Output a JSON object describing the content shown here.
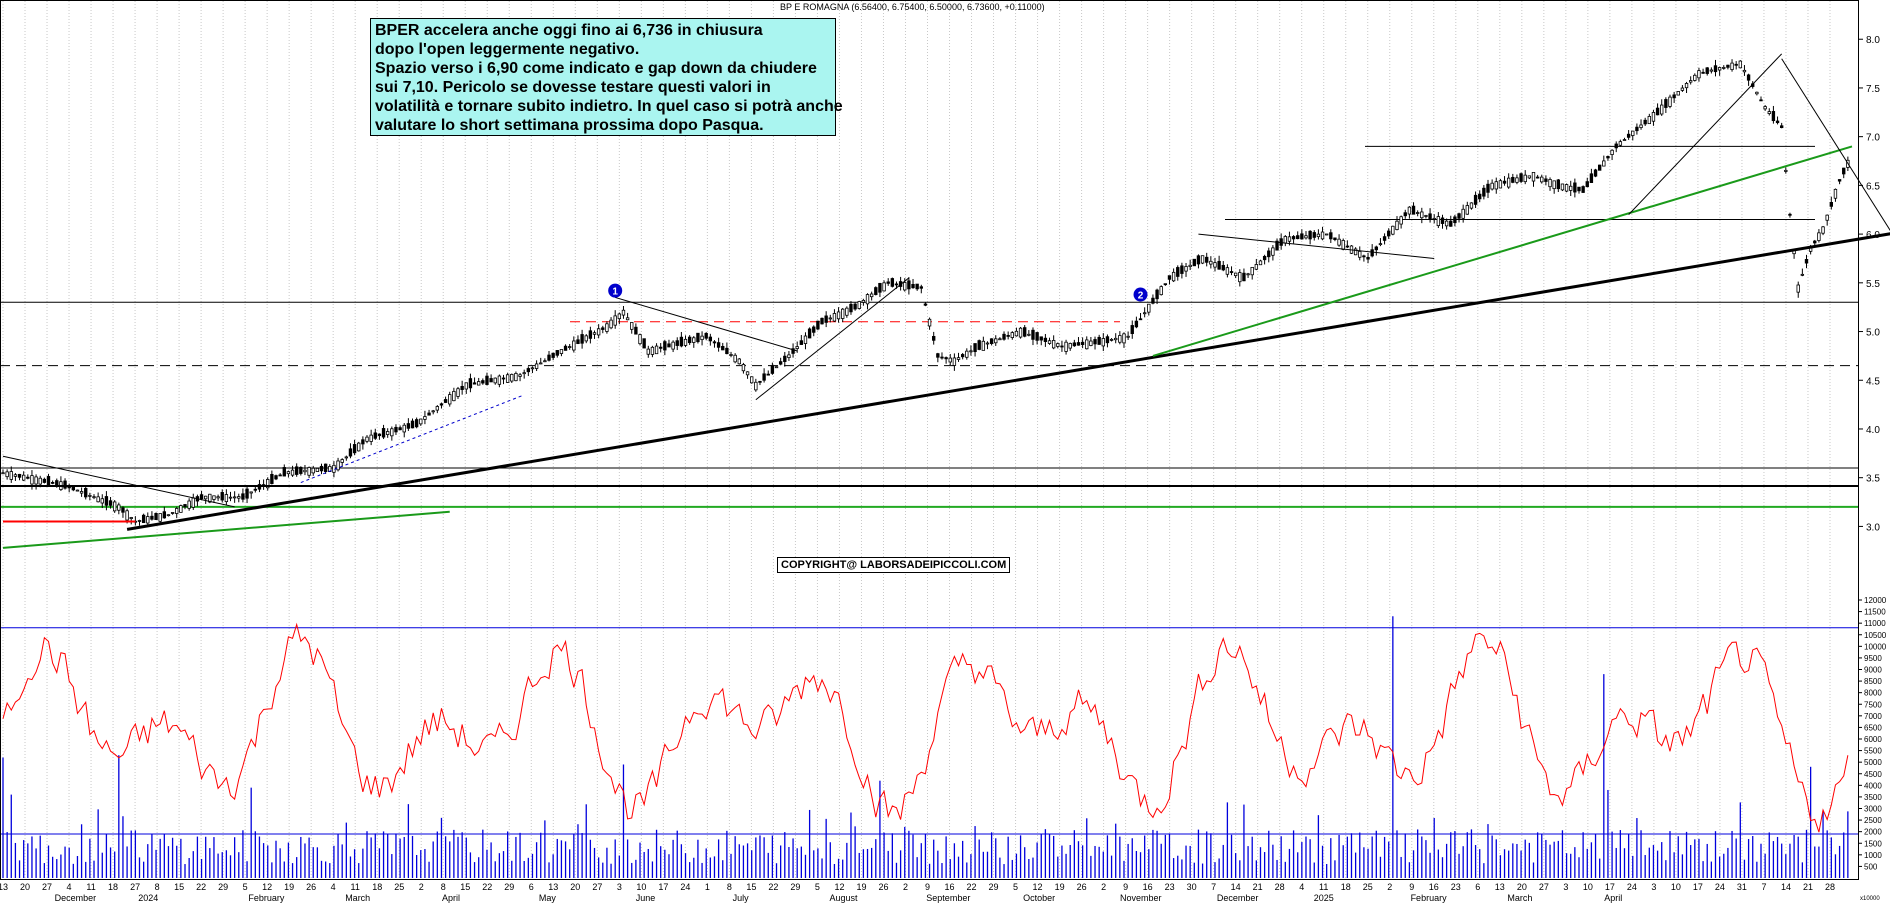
{
  "header": {
    "ticker_line": "BP E ROMAGNA (6.56400, 6.75400, 6.50000, 6.73600, +0.11000)"
  },
  "annotation": {
    "lines": [
      "BPER accelera anche oggi fino ai 6,736 in chiusura",
      "dopo l'open leggermente negativo.",
      "Spazio verso i 6,90 come indicato e gap down da chiudere",
      "sui 7,10. Pericolo se dovesse testare questi valori in",
      "volatilità e tornare subito indietro. In quel caso si potrà anche",
      "valutare lo short settimana prossima dopo Pasqua."
    ]
  },
  "copyright": "COPYRIGHT@ LABORSADEIPICCOLI.COM",
  "markers": [
    {
      "label": "1",
      "date_index": 148,
      "price": 5.42
    },
    {
      "label": "2",
      "date_index": 275,
      "price": 5.38
    }
  ],
  "colors": {
    "candle": "#000000",
    "trend_black": "#000000",
    "trend_green": "#1a9a1a",
    "support_green": "#22aa22",
    "dashed_red": "#ff0000",
    "dashed_blue": "#0000cc",
    "volume": "#0000dd",
    "oscillator": "#ff0000",
    "marker": "#0000cc",
    "grid": "#c8c8c8",
    "annotation_bg": "#aaf5f0"
  },
  "chart_data": [
    {
      "type": "candlestick",
      "title": "BP E ROMAGNA",
      "ohlc_last": {
        "open": 6.564,
        "high": 6.754,
        "low": 6.5,
        "close": 6.736,
        "change": 0.11
      },
      "ylim": [
        2.45,
        8.3
      ],
      "y_ticks": [
        "3.0",
        "3.5",
        "4.0",
        "4.5",
        "5.0",
        "5.5",
        "6.0",
        "6.5",
        "7.0",
        "7.5",
        "8.0"
      ],
      "grid": true,
      "series": [
        {
          "name": "price",
          "anchors": [
            [
              0,
              3.55
            ],
            [
              15,
              3.42
            ],
            [
              28,
              3.2
            ],
            [
              32,
              3.05
            ],
            [
              40,
              3.12
            ],
            [
              48,
              3.3
            ],
            [
              58,
              3.3
            ],
            [
              68,
              3.55
            ],
            [
              80,
              3.6
            ],
            [
              88,
              3.9
            ],
            [
              100,
              4.05
            ],
            [
              112,
              4.45
            ],
            [
              125,
              4.55
            ],
            [
              135,
              4.8
            ],
            [
              146,
              5.05
            ],
            [
              150,
              5.2
            ],
            [
              156,
              4.8
            ],
            [
              170,
              4.95
            ],
            [
              178,
              4.7
            ],
            [
              182,
              4.45
            ],
            [
              190,
              4.75
            ],
            [
              198,
              5.1
            ],
            [
              206,
              5.25
            ],
            [
              214,
              5.5
            ],
            [
              222,
              5.45
            ],
            [
              226,
              4.75
            ],
            [
              230,
              4.7
            ],
            [
              236,
              4.85
            ],
            [
              246,
              5.0
            ],
            [
              256,
              4.85
            ],
            [
              266,
              4.9
            ],
            [
              272,
              4.95
            ],
            [
              282,
              5.55
            ],
            [
              290,
              5.75
            ],
            [
              300,
              5.55
            ],
            [
              310,
              5.95
            ],
            [
              320,
              6.0
            ],
            [
              330,
              5.75
            ],
            [
              340,
              6.25
            ],
            [
              350,
              6.1
            ],
            [
              360,
              6.5
            ],
            [
              370,
              6.6
            ],
            [
              376,
              6.5
            ],
            [
              382,
              6.45
            ],
            [
              390,
              6.9
            ],
            [
              400,
              7.25
            ],
            [
              410,
              7.65
            ],
            [
              420,
              7.75
            ],
            [
              426,
              7.3
            ],
            [
              430,
              7.1
            ],
            [
              432,
              6.2
            ],
            [
              434,
              5.45
            ],
            [
              437,
              5.85
            ],
            [
              440,
              6.05
            ],
            [
              442,
              6.3
            ],
            [
              444,
              6.55
            ],
            [
              446,
              6.73
            ]
          ]
        }
      ],
      "horizontal_levels": [
        {
          "price": 5.3,
          "style": "solid",
          "color": "black"
        },
        {
          "price": 4.65,
          "style": "dashed",
          "color": "black"
        },
        {
          "price": 3.6,
          "style": "solid",
          "color": "black"
        },
        {
          "price": 3.2,
          "style": "solid",
          "color": "green"
        },
        {
          "price": 6.9,
          "style": "solid",
          "color": "black"
        },
        {
          "price": 6.15,
          "style": "solid",
          "color": "black"
        },
        {
          "price": 5.1,
          "style": "dashed",
          "color": "red"
        }
      ],
      "trendlines": [
        {
          "from": [
            30,
            2.97
          ],
          "to": [
            460,
            6.03
          ],
          "color": "black",
          "width": 3
        },
        {
          "from": [
            0,
            2.78
          ],
          "to": [
            108,
            3.15
          ],
          "color": "green",
          "width": 2
        },
        {
          "from": [
            278,
            4.75
          ],
          "to": [
            447,
            6.9
          ],
          "color": "green",
          "width": 2
        },
        {
          "from": [
            72,
            3.45
          ],
          "to": [
            126,
            4.35
          ],
          "color": "blue",
          "style": "dotted"
        },
        {
          "from": [
            148,
            5.35
          ],
          "to": [
            192,
            4.8
          ],
          "color": "black",
          "width": 1
        },
        {
          "from": [
            182,
            4.3
          ],
          "to": [
            219,
            5.55
          ],
          "color": "black",
          "width": 1
        },
        {
          "from": [
            0,
            3.72
          ],
          "to": [
            56,
            3.2
          ],
          "color": "black",
          "width": 1
        },
        {
          "from": [
            289,
            6.0
          ],
          "to": [
            346,
            5.75
          ],
          "color": "black",
          "width": 1
        },
        {
          "from": [
            393,
            6.2
          ],
          "to": [
            430,
            7.85
          ],
          "color": "black",
          "width": 1
        },
        {
          "from": [
            430,
            7.8
          ],
          "to": [
            458,
            5.92
          ],
          "color": "black",
          "width": 1
        },
        {
          "from": [
            0,
            3.05
          ],
          "to": [
            32,
            3.05
          ],
          "color": "red",
          "width": 2
        }
      ]
    },
    {
      "type": "bar+line",
      "title": "volume",
      "ylim": [
        0,
        12000
      ],
      "y_ticks": [
        "500",
        "1000",
        "1500",
        "2000",
        "2500",
        "3000",
        "3500",
        "4000",
        "4500",
        "5000",
        "5500",
        "6000",
        "6500",
        "7000",
        "7500",
        "8000",
        "8500",
        "9000",
        "9500",
        "10000",
        "10500",
        "11000",
        "11500",
        "12000"
      ],
      "unit_label": "x10000",
      "reference_levels": [
        10800,
        1900
      ],
      "volume_spikes": [
        [
          0,
          5200
        ],
        [
          2,
          3600
        ],
        [
          28,
          5300
        ],
        [
          60,
          3900
        ],
        [
          150,
          4900
        ],
        [
          212,
          4200
        ],
        [
          336,
          11300
        ],
        [
          387,
          8800
        ],
        [
          388,
          3800
        ],
        [
          437,
          4800
        ],
        [
          440,
          2900
        ]
      ]
    }
  ],
  "x_axis": {
    "labels": [
      {
        "text": "13",
        "i": 0
      },
      {
        "text": "20",
        "i": 5
      },
      {
        "text": "27",
        "i": 10
      },
      {
        "text": "4",
        "i": 15
      },
      {
        "text": "11",
        "i": 20
      },
      {
        "text": "18",
        "i": 25
      },
      {
        "text": "27",
        "i": 30
      },
      {
        "text": "8",
        "i": 35
      },
      {
        "text": "15",
        "i": 40
      },
      {
        "text": "22",
        "i": 45
      },
      {
        "text": "29",
        "i": 50
      },
      {
        "text": "5",
        "i": 55
      },
      {
        "text": "12",
        "i": 60
      },
      {
        "text": "19",
        "i": 65
      },
      {
        "text": "26",
        "i": 70
      },
      {
        "text": "4",
        "i": 75
      },
      {
        "text": "11",
        "i": 80
      },
      {
        "text": "18",
        "i": 85
      },
      {
        "text": "25",
        "i": 90
      },
      {
        "text": "2",
        "i": 95
      },
      {
        "text": "8",
        "i": 100
      },
      {
        "text": "15",
        "i": 105
      },
      {
        "text": "22",
        "i": 110
      },
      {
        "text": "29",
        "i": 115
      },
      {
        "text": "6",
        "i": 120
      },
      {
        "text": "13",
        "i": 125
      },
      {
        "text": "20",
        "i": 130
      },
      {
        "text": "27",
        "i": 135
      },
      {
        "text": "3",
        "i": 140
      },
      {
        "text": "10",
        "i": 145
      },
      {
        "text": "17",
        "i": 150
      },
      {
        "text": "24",
        "i": 155
      },
      {
        "text": "1",
        "i": 160
      },
      {
        "text": "8",
        "i": 165
      },
      {
        "text": "15",
        "i": 170
      },
      {
        "text": "22",
        "i": 175
      },
      {
        "text": "29",
        "i": 180
      },
      {
        "text": "5",
        "i": 185
      },
      {
        "text": "12",
        "i": 190
      },
      {
        "text": "19",
        "i": 195
      },
      {
        "text": "26",
        "i": 200
      },
      {
        "text": "2",
        "i": 205
      },
      {
        "text": "9",
        "i": 210
      },
      {
        "text": "16",
        "i": 215
      },
      {
        "text": "22",
        "i": 220
      },
      {
        "text": "29",
        "i": 225
      },
      {
        "text": "5",
        "i": 230
      },
      {
        "text": "12",
        "i": 235
      },
      {
        "text": "19",
        "i": 240
      },
      {
        "text": "26",
        "i": 245
      },
      {
        "text": "2",
        "i": 250
      },
      {
        "text": "9",
        "i": 255
      },
      {
        "text": "16",
        "i": 260
      },
      {
        "text": "23",
        "i": 265
      },
      {
        "text": "30",
        "i": 270
      },
      {
        "text": "7",
        "i": 275
      },
      {
        "text": "14",
        "i": 280
      },
      {
        "text": "21",
        "i": 285
      },
      {
        "text": "28",
        "i": 290
      },
      {
        "text": "4",
        "i": 295
      },
      {
        "text": "11",
        "i": 300
      },
      {
        "text": "18",
        "i": 305
      },
      {
        "text": "25",
        "i": 310
      },
      {
        "text": "2",
        "i": 315
      },
      {
        "text": "9",
        "i": 320
      },
      {
        "text": "16",
        "i": 325
      },
      {
        "text": "23",
        "i": 330
      },
      {
        "text": "6",
        "i": 335
      },
      {
        "text": "13",
        "i": 340
      },
      {
        "text": "20",
        "i": 345
      },
      {
        "text": "27",
        "i": 350
      },
      {
        "text": "3",
        "i": 355
      },
      {
        "text": "10",
        "i": 360
      },
      {
        "text": "17",
        "i": 365
      },
      {
        "text": "24",
        "i": 370
      },
      {
        "text": "3",
        "i": 375
      },
      {
        "text": "10",
        "i": 380
      },
      {
        "text": "17",
        "i": 385
      },
      {
        "text": "24",
        "i": 390
      },
      {
        "text": "31",
        "i": 395
      },
      {
        "text": "7",
        "i": 400
      },
      {
        "text": "14",
        "i": 405
      },
      {
        "text": "21",
        "i": 410
      },
      {
        "text": "28",
        "i": 415
      }
    ],
    "months": [
      {
        "text": "December",
        "i": 14
      },
      {
        "text": "2024",
        "i": 33
      },
      {
        "text": "February",
        "i": 58
      },
      {
        "text": "March",
        "i": 80
      },
      {
        "text": "April",
        "i": 102
      },
      {
        "text": "May",
        "i": 124
      },
      {
        "text": "June",
        "i": 146
      },
      {
        "text": "July",
        "i": 168
      },
      {
        "text": "August",
        "i": 190
      },
      {
        "text": "September",
        "i": 212
      },
      {
        "text": "October",
        "i": 234
      },
      {
        "text": "November",
        "i": 256
      },
      {
        "text": "December",
        "i": 278
      },
      {
        "text": "2025",
        "i": 300
      },
      {
        "text": "February",
        "i": 322
      },
      {
        "text": "March",
        "i": 344
      },
      {
        "text": "April",
        "i": 366
      }
    ]
  }
}
